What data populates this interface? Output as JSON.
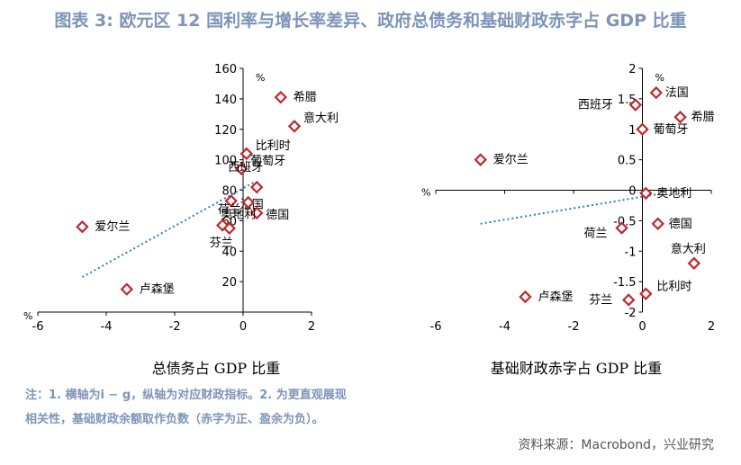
{
  "page": {
    "title": "图表 3:   欧元区 12 国利率与增长率差异、政府总债务和基础财政赤字占 GDP 比重",
    "note_line1": "注：1. 横轴为i − g，纵轴为对应财政指标。2. 为更直观展现",
    "note_line2": "相关性，基础财政余额取作负数（赤字为正、盈余为负）。",
    "source": "资料来源：Macrobond，兴业研究"
  },
  "colors": {
    "marker": "#c0272d",
    "trend": "#2e7fb8",
    "title": "#7d94b8"
  },
  "chart_data": [
    {
      "type": "scatter",
      "xlabel": "总债务占 GDP 比重",
      "ylabel": "%",
      "xunit": "%",
      "xlim": [
        -6,
        2
      ],
      "ylim": [
        0,
        160
      ],
      "xticks": [
        -6,
        -4,
        -2,
        0,
        2
      ],
      "yticks": [
        20,
        40,
        60,
        80,
        100,
        120,
        140,
        160
      ],
      "points": [
        {
          "label": "希腊",
          "x": 1.1,
          "y": 141
        },
        {
          "label": "意大利",
          "x": 1.5,
          "y": 122
        },
        {
          "label": "比利时",
          "x": 0.1,
          "y": 104
        },
        {
          "label": "葡萄牙",
          "x": -0.05,
          "y": 94
        },
        {
          "label": "西班牙",
          "x": 0.4,
          "y": 82
        },
        {
          "label": "法国",
          "x": -0.35,
          "y": 73
        },
        {
          "label": "荷兰",
          "x": 0.15,
          "y": 72
        },
        {
          "label": "德国",
          "x": 0.4,
          "y": 65
        },
        {
          "label": "奥地利",
          "x": -0.6,
          "y": 57
        },
        {
          "label": "芬兰",
          "x": -0.4,
          "y": 55
        },
        {
          "label": "爱尔兰",
          "x": -4.7,
          "y": 56
        },
        {
          "label": "卢森堡",
          "x": -3.4,
          "y": 15
        }
      ],
      "trend": {
        "x": [
          -4.7,
          0.3
        ],
        "y": [
          23,
          85
        ]
      }
    },
    {
      "type": "scatter",
      "xlabel": "基础财政赤字占 GDP 比重",
      "ylabel": "%",
      "xunit": "%",
      "xlim": [
        -6,
        2
      ],
      "ylim": [
        -2,
        2
      ],
      "xticks": [
        -6,
        -4,
        -2,
        0,
        2
      ],
      "yticks": [
        -2,
        -1.5,
        -1,
        -0.5,
        0,
        0.5,
        1,
        1.5,
        2
      ],
      "points": [
        {
          "label": "法国",
          "x": 0.4,
          "y": 1.6
        },
        {
          "label": "西班牙",
          "x": -0.2,
          "y": 1.4
        },
        {
          "label": "希腊",
          "x": 1.1,
          "y": 1.2
        },
        {
          "label": "葡萄牙",
          "x": 0.0,
          "y": 1.0
        },
        {
          "label": "爱尔兰",
          "x": -4.7,
          "y": 0.5
        },
        {
          "label": "奥地利",
          "x": 0.1,
          "y": -0.05
        },
        {
          "label": "德国",
          "x": 0.45,
          "y": -0.55
        },
        {
          "label": "荷兰",
          "x": -0.6,
          "y": -0.62
        },
        {
          "label": "意大利",
          "x": 1.5,
          "y": -1.2
        },
        {
          "label": "比利时",
          "x": 0.1,
          "y": -1.7
        },
        {
          "label": "卢森堡",
          "x": -3.4,
          "y": -1.75
        },
        {
          "label": "芬兰",
          "x": -0.4,
          "y": -1.8
        }
      ],
      "trend": {
        "x": [
          -4.7,
          0.6
        ],
        "y": [
          -0.55,
          -0.05
        ]
      }
    }
  ]
}
